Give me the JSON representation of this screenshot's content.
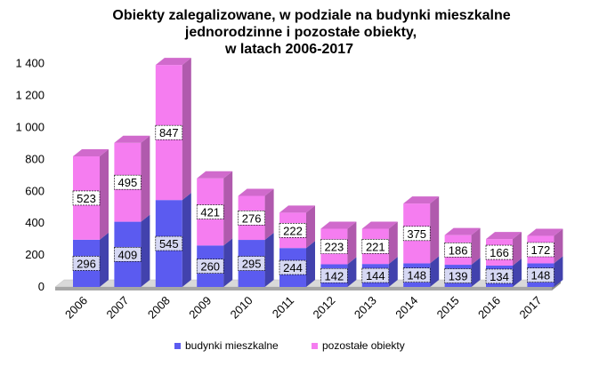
{
  "chart_data": {
    "type": "bar",
    "stacked": true,
    "style": "3d",
    "title_lines": [
      "Obiekty zalegalizowane, w podziale na budynki mieszkalne",
      "jednorodzinne i pozostałe obiekty,",
      "w latach 2006-2017"
    ],
    "categories": [
      "2006",
      "2007",
      "2008",
      "2009",
      "2010",
      "2011",
      "2012",
      "2013",
      "2014",
      "2015",
      "2016",
      "2017"
    ],
    "series": [
      {
        "name": "budynki mieszkalne",
        "color": "#5b5bf0",
        "values": [
          296,
          409,
          545,
          260,
          295,
          244,
          142,
          144,
          148,
          139,
          134,
          148
        ]
      },
      {
        "name": "pozostałe obiekty",
        "color": "#f57df0",
        "values": [
          523,
          495,
          847,
          421,
          276,
          222,
          223,
          221,
          375,
          186,
          166,
          172
        ]
      }
    ],
    "y_ticks": [
      "0",
      "200",
      "400",
      "600",
      "800",
      "1 000",
      "1 200",
      "1 400"
    ],
    "ylim": [
      0,
      1400
    ],
    "grid": false,
    "legend_position": "bottom"
  }
}
